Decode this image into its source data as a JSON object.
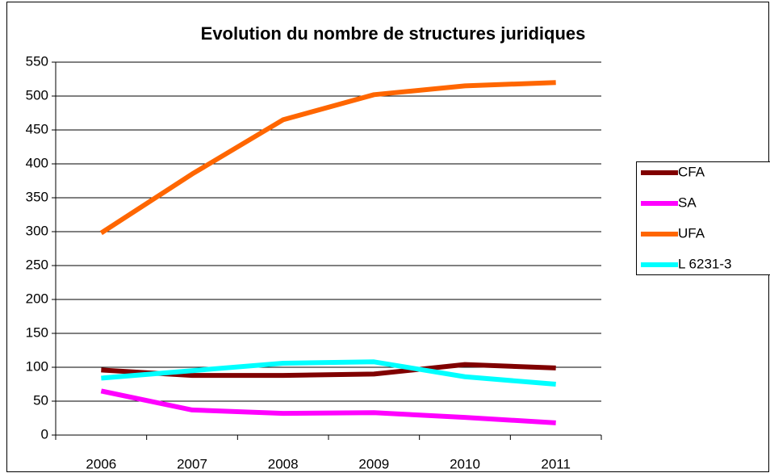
{
  "chart_data": {
    "type": "line",
    "title": "Evolution du nombre de structures juridiques",
    "categories": [
      "2006",
      "2007",
      "2008",
      "2009",
      "2010",
      "2011"
    ],
    "series": [
      {
        "name": "CFA",
        "color": "#800000",
        "values": [
          96,
          88,
          88,
          90,
          104,
          99
        ]
      },
      {
        "name": "SA",
        "color": "#ff00ff",
        "values": [
          65,
          37,
          32,
          33,
          26,
          18
        ]
      },
      {
        "name": "UFA",
        "color": "#ff6600",
        "values": [
          298,
          385,
          465,
          502,
          515,
          520
        ]
      },
      {
        "name": "L 6231-3",
        "color": "#00ffff",
        "values": [
          84,
          95,
          106,
          108,
          86,
          75
        ]
      }
    ],
    "ylim": [
      0,
      550
    ],
    "yticks": [
      0,
      50,
      100,
      150,
      200,
      250,
      300,
      350,
      400,
      450,
      500,
      550
    ],
    "grid": true,
    "legend": "right"
  }
}
